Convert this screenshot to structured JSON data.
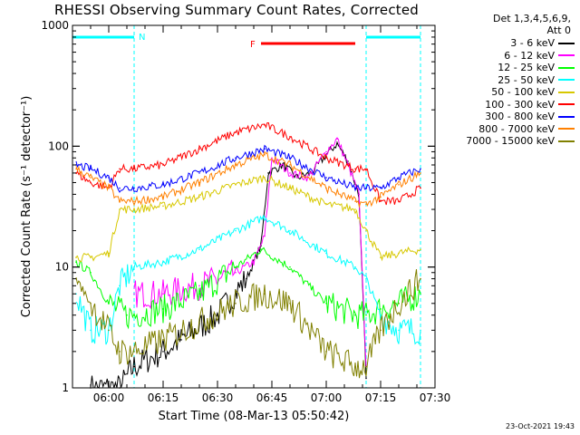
{
  "title": "RHESSI Observing Summary Count Rates, Corrected",
  "legend": {
    "header_line1": "Det 1,3,4,5,6,9,",
    "header_line2": "Att 0",
    "entries": [
      {
        "label": "3 - 6 keV",
        "color": "#000000"
      },
      {
        "label": "6 - 12 keV",
        "color": "#ff00ff"
      },
      {
        "label": "12 - 25 keV",
        "color": "#00ff00"
      },
      {
        "label": "25 - 50 keV",
        "color": "#00ffff"
      },
      {
        "label": "50 - 100 keV",
        "color": "#d7c800"
      },
      {
        "label": "100 - 300 keV",
        "color": "#ff0000"
      },
      {
        "label": "300 - 800 keV",
        "color": "#0000ff"
      },
      {
        "label": "800 - 7000 keV",
        "color": "#ff8000"
      },
      {
        "label": "7000 - 15000 keV",
        "color": "#808000"
      }
    ]
  },
  "footer_date": "23-Oct-2021 19:43",
  "chart_data": {
    "type": "line",
    "title": "RHESSI Observing Summary Count Rates, Corrected",
    "xlabel": "Start Time (08-Mar-13 05:50:42)",
    "ylabel": "Corrected Count Rate (s⁻¹ detector⁻¹)",
    "y_scale": "log",
    "ylim": [
      1,
      1000
    ],
    "xlim": [
      "05:50",
      "07:30"
    ],
    "x_ticks": [
      "06:00",
      "06:15",
      "06:30",
      "06:45",
      "07:00",
      "07:15",
      "07:30"
    ],
    "y_ticks": [
      "1",
      "10",
      "100",
      "1000"
    ],
    "annotations": [
      {
        "text": "N",
        "color": "#00ffff",
        "type": "night",
        "start": "05:50",
        "end": "06:07"
      },
      {
        "text": "",
        "color": "#00ffff",
        "type": "night",
        "start": "07:11",
        "end": "07:26"
      },
      {
        "text": "F",
        "color": "#ff0000",
        "type": "flare",
        "start": "06:42",
        "end": "07:08"
      }
    ],
    "series": [
      {
        "name": "3 - 6 keV",
        "color": "#000000",
        "x": [
          "05:55",
          "06:03",
          "06:07",
          "06:15",
          "06:20",
          "06:30",
          "06:38",
          "06:42",
          "06:44",
          "06:48",
          "06:52",
          "06:56",
          "07:00",
          "07:03",
          "07:06",
          "07:09",
          "07:11"
        ],
        "values": [
          1.0,
          1.0,
          1.5,
          2.0,
          2.5,
          4.0,
          8.0,
          15,
          60,
          70,
          55,
          60,
          85,
          105,
          75,
          40,
          1.2
        ]
      },
      {
        "name": "6 - 12 keV",
        "color": "#ff00ff",
        "x": [
          "06:07",
          "06:15",
          "06:25",
          "06:35",
          "06:40",
          "06:43",
          "06:45",
          "06:50",
          "06:55",
          "07:00",
          "07:03",
          "07:06",
          "07:09",
          "07:11"
        ],
        "values": [
          6,
          6,
          7,
          9,
          11,
          18,
          80,
          60,
          55,
          90,
          115,
          70,
          40,
          1.5
        ]
      },
      {
        "name": "12 - 25 keV",
        "color": "#00ff00",
        "x": [
          "05:51",
          "05:55",
          "06:00",
          "06:05",
          "06:07",
          "06:15",
          "06:25",
          "06:35",
          "06:42",
          "06:50",
          "07:00",
          "07:08",
          "07:11",
          "07:15",
          "07:20",
          "07:26"
        ],
        "values": [
          11,
          9,
          5,
          4,
          4,
          4.5,
          6,
          10,
          14,
          10,
          5,
          4,
          4,
          4.5,
          5,
          6
        ]
      },
      {
        "name": "25 - 50 keV",
        "color": "#00ffff",
        "x": [
          "05:51",
          "05:55",
          "06:00",
          "06:03",
          "06:07",
          "06:15",
          "06:25",
          "06:35",
          "06:43",
          "06:50",
          "07:00",
          "07:08",
          "07:11",
          "07:15",
          "07:20",
          "07:26"
        ],
        "values": [
          6,
          3,
          3,
          7,
          10,
          11,
          14,
          20,
          26,
          20,
          13,
          10,
          8,
          4,
          3,
          3
        ]
      },
      {
        "name": "50 - 100 keV",
        "color": "#d7c800",
        "x": [
          "05:51",
          "05:55",
          "06:00",
          "06:03",
          "06:07",
          "06:15",
          "06:25",
          "06:35",
          "06:43",
          "06:50",
          "07:00",
          "07:08",
          "07:11",
          "07:15",
          "07:20",
          "07:26"
        ],
        "values": [
          12,
          12,
          13,
          30,
          30,
          32,
          38,
          48,
          55,
          45,
          33,
          30,
          20,
          12,
          13,
          14
        ]
      },
      {
        "name": "100 - 300 keV",
        "color": "#ff0000",
        "x": [
          "05:51",
          "05:55",
          "06:00",
          "06:03",
          "06:07",
          "06:15",
          "06:25",
          "06:35",
          "06:43",
          "06:50",
          "07:00",
          "07:08",
          "07:11",
          "07:15",
          "07:20",
          "07:26"
        ],
        "values": [
          60,
          50,
          45,
          65,
          65,
          70,
          95,
          130,
          150,
          120,
          80,
          65,
          65,
          35,
          35,
          45
        ]
      },
      {
        "name": "300 - 800 keV",
        "color": "#0000ff",
        "x": [
          "05:51",
          "05:55",
          "06:00",
          "06:03",
          "06:07",
          "06:15",
          "06:25",
          "06:35",
          "06:43",
          "06:50",
          "07:00",
          "07:08",
          "07:11",
          "07:15",
          "07:20",
          "07:26"
        ],
        "values": [
          70,
          65,
          55,
          45,
          45,
          48,
          60,
          80,
          95,
          80,
          55,
          45,
          45,
          45,
          55,
          65
        ]
      },
      {
        "name": "800 - 7000 keV",
        "color": "#ff8000",
        "x": [
          "05:51",
          "05:55",
          "06:00",
          "06:03",
          "06:07",
          "06:15",
          "06:25",
          "06:35",
          "06:43",
          "06:50",
          "07:00",
          "07:08",
          "07:11",
          "07:15",
          "07:20",
          "07:26"
        ],
        "values": [
          65,
          55,
          45,
          35,
          35,
          38,
          50,
          70,
          85,
          70,
          45,
          35,
          33,
          38,
          48,
          60
        ]
      },
      {
        "name": "7000 - 15000 keV",
        "color": "#808000",
        "x": [
          "05:51",
          "05:55",
          "06:00",
          "06:03",
          "06:07",
          "06:15",
          "06:25",
          "06:35",
          "06:43",
          "06:50",
          "07:00",
          "07:08",
          "07:11",
          "07:15",
          "07:20",
          "07:26"
        ],
        "values": [
          8,
          5,
          3,
          2,
          2,
          2.5,
          3.5,
          5,
          6,
          5,
          2,
          1.5,
          1.5,
          3,
          5,
          8
        ]
      }
    ]
  }
}
